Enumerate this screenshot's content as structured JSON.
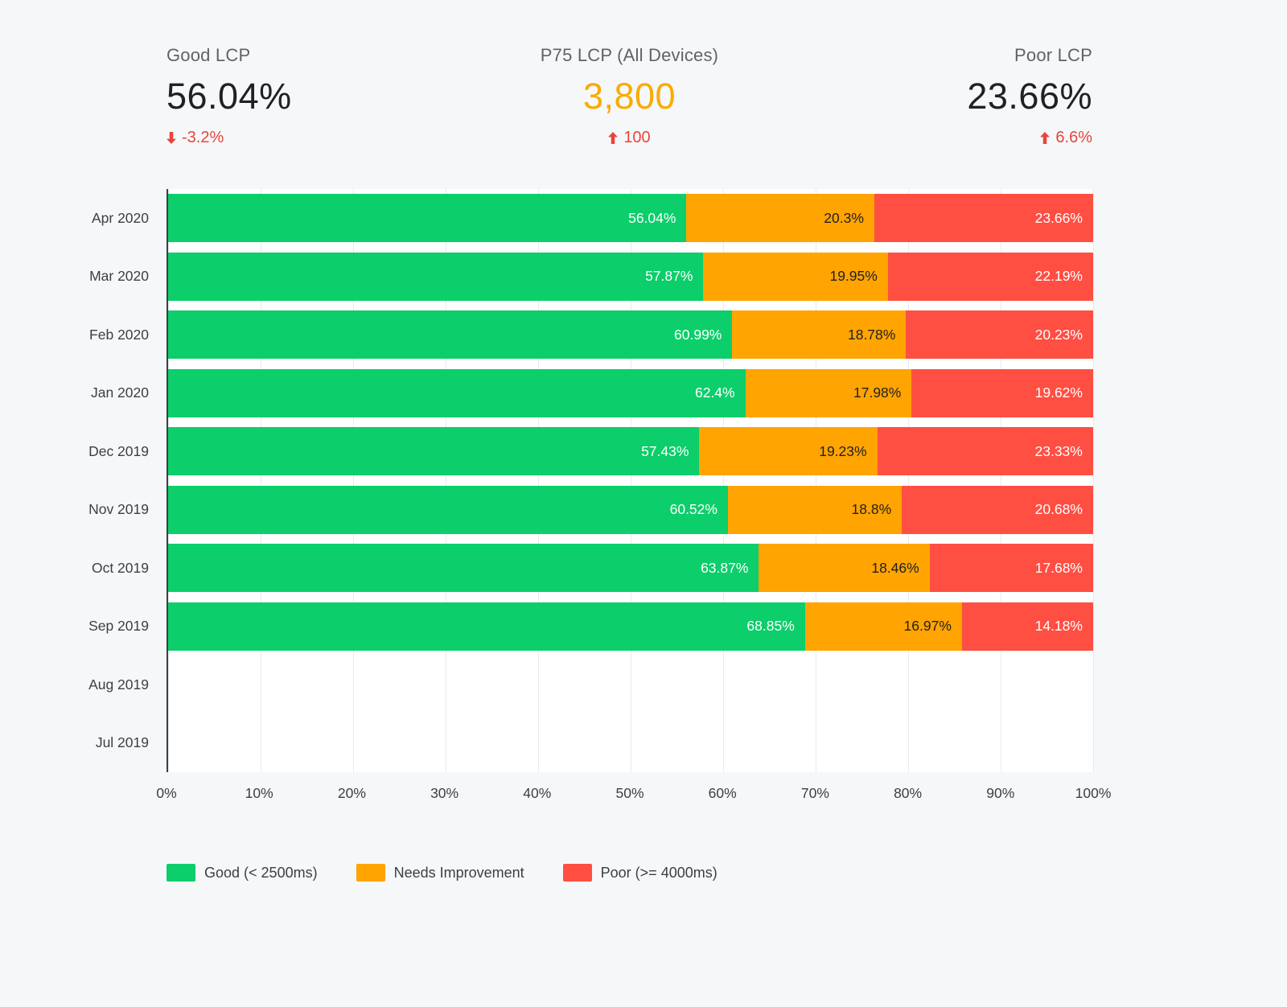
{
  "colors": {
    "good": "#0CCE6B",
    "warn": "#FFA400",
    "poor": "#FF4E42",
    "delta-red": "#E8453C",
    "p75-orange": "#F9AB00",
    "page-bg": "#F6F7F9",
    "plot-bg": "#FFFFFF",
    "grid": "#E8EAED",
    "axis": "#3C4043",
    "text-dark": "#202124",
    "text-muted": "#5F6368",
    "text-label": "#3C4043"
  },
  "kpis": {
    "good": {
      "label": "Good LCP",
      "value": "56.04%",
      "delta": "-3.2%",
      "delta_direction": "down"
    },
    "p75": {
      "label": "P75 LCP (All Devices)",
      "value": "3,800",
      "delta": "100",
      "delta_direction": "up"
    },
    "poor": {
      "label": "Poor LCP",
      "value": "23.66%",
      "delta": "6.6%",
      "delta_direction": "up"
    }
  },
  "chart_data": {
    "type": "bar",
    "orientation": "horizontal",
    "stacked": true,
    "x_unit": "percent",
    "xlim": [
      0,
      100
    ],
    "grid": true,
    "legend_position": "bottom",
    "x_ticks": [
      "0%",
      "10%",
      "20%",
      "30%",
      "40%",
      "50%",
      "60%",
      "70%",
      "80%",
      "90%",
      "100%"
    ],
    "categories": [
      "Apr 2020",
      "Mar 2020",
      "Feb 2020",
      "Jan 2020",
      "Dec 2019",
      "Nov 2019",
      "Oct 2019",
      "Sep 2019",
      "Aug 2019",
      "Jul 2019"
    ],
    "series": [
      {
        "name": "Good (< 2500ms)",
        "color": "#0CCE6B",
        "label_color": "#FFFFFF",
        "values": [
          56.04,
          57.87,
          60.99,
          62.4,
          57.43,
          60.52,
          63.87,
          68.85,
          null,
          null
        ]
      },
      {
        "name": "Needs Improvement",
        "color": "#FFA400",
        "label_color": "#212121",
        "values": [
          20.3,
          19.95,
          18.78,
          17.98,
          19.23,
          18.8,
          18.46,
          16.97,
          null,
          null
        ]
      },
      {
        "name": "Poor (>= 4000ms)",
        "color": "#FF4E42",
        "label_color": "#FFFFFF",
        "values": [
          23.66,
          22.19,
          20.23,
          19.62,
          23.33,
          20.68,
          17.68,
          14.18,
          null,
          null
        ]
      }
    ]
  }
}
